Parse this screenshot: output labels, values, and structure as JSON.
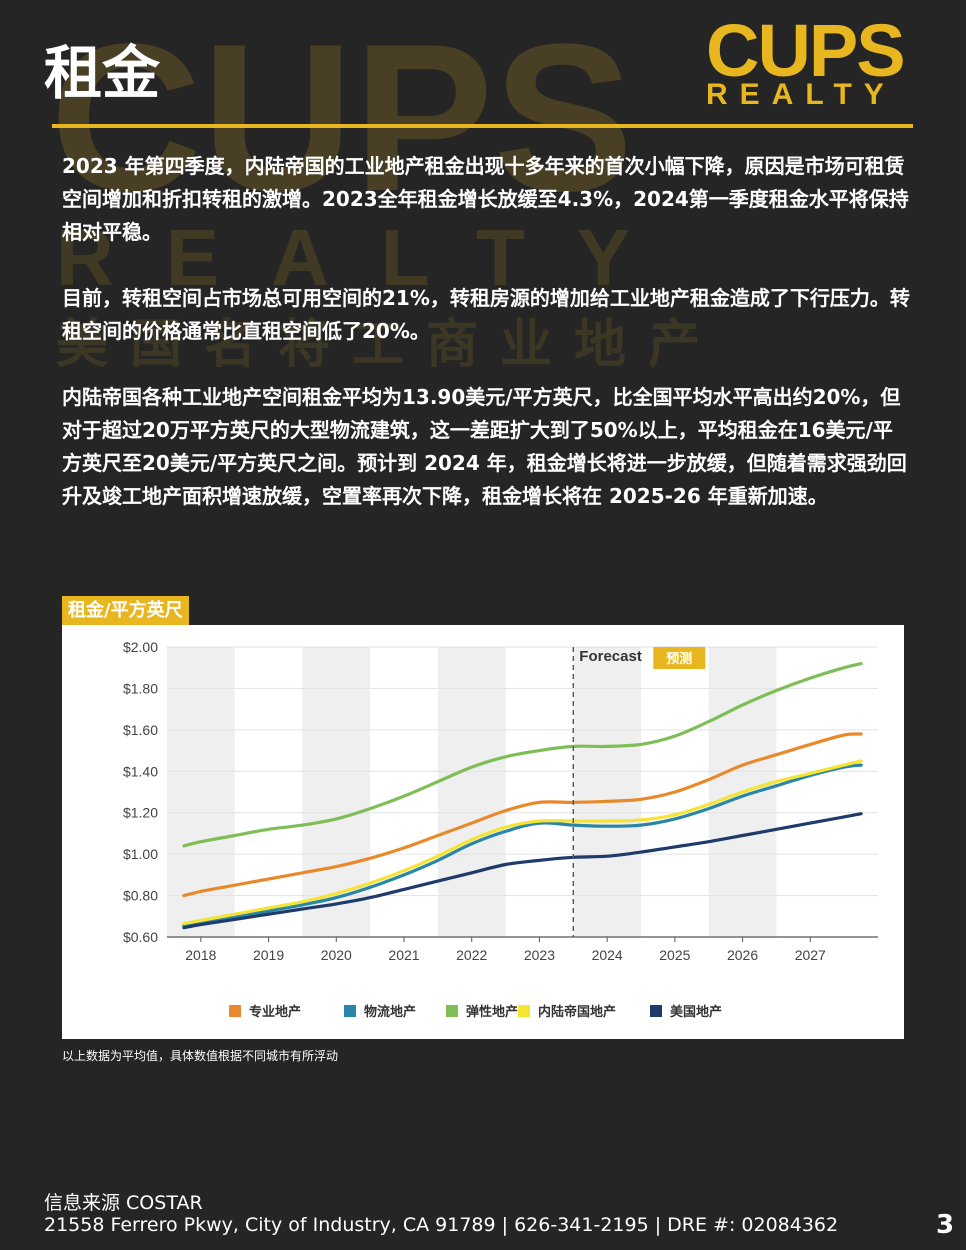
{
  "header": {
    "title": "租金",
    "logo_main": "CUPS",
    "logo_sub": "REALTY",
    "watermark_line1": "CUPS",
    "watermark_line2": "REALTY",
    "watermark_line3": "美国名将工商业地产"
  },
  "paragraphs": [
    "2023 年第四季度，内陆帝国的工业地产租金出现十多年来的首次小幅下降，原因是市场可租赁空间增加和折扣转租的激增。2023全年租金增长放缓至4.3%，2024第一季度租金水平将保持相对平稳。",
    "目前，转租空间占市场总可用空间的21%，转租房源的增加给工业地产租金造成了下行压力。转租空间的价格通常比直租空间低了20%。",
    "内陆帝国各种工业地产空间租金平均为13.90美元/平方英尺，比全国平均水平高出约20%，但对于超过20万平方英尺的大型物流建筑，这一差距扩大到了50%以上，平均租金在16美元/平方英尺至20美元/平方英尺之间。预计到 2024 年，租金增长将进一步放缓，但随着需求强劲回升及竣工地产面积增速放缓，空置率再次下降，租金增长将在 2025-26 年重新加速。"
  ],
  "chart_tag": "租金/平方英尺",
  "note": "以上数据为平均值，具体数值根据不同城市有所浮动",
  "footer": {
    "source": "信息来源 COSTAR",
    "address": "21558 Ferrero Pkwy, City of Industry, CA 91789 | 626-341-2195 | DRE #: 02084362",
    "page_number": "3"
  },
  "colors": {
    "background": "#252525",
    "accent_gold": "#e8b71f"
  },
  "chart_data": {
    "type": "line",
    "title": "",
    "xlabel": "",
    "ylabel": "",
    "x": [
      2017.75,
      2018,
      2018.5,
      2019,
      2019.5,
      2020,
      2020.5,
      2021,
      2021.5,
      2022,
      2022.5,
      2023,
      2023.5,
      2024,
      2024.5,
      2025,
      2025.5,
      2026,
      2026.5,
      2027,
      2027.5,
      2027.75
    ],
    "x_ticks": [
      2018,
      2019,
      2020,
      2021,
      2022,
      2023,
      2024,
      2025,
      2026,
      2027
    ],
    "x_tick_labels": [
      "2018",
      "2019",
      "2020",
      "2021",
      "2022",
      "2023",
      "2024",
      "2025",
      "2026",
      "2027"
    ],
    "xlim": [
      2017.5,
      2028.0
    ],
    "ylim": [
      0.6,
      2.0
    ],
    "y_ticks": [
      0.6,
      0.8,
      1.0,
      1.2,
      1.4,
      1.6,
      1.8,
      2.0
    ],
    "y_tick_labels": [
      "$0.60",
      "$0.80",
      "$1.00",
      "$1.20",
      "$1.40",
      "$1.60",
      "$1.80",
      "$2.00"
    ],
    "forecast_start": 2023.5,
    "forecast_label": "Forecast",
    "forecast_badge": "预测",
    "shaded_years": [
      2018,
      2020,
      2022,
      2024,
      2026
    ],
    "legend_position": "bottom",
    "series": [
      {
        "name": "专业地产",
        "color": "#e8892b",
        "values": [
          0.8,
          0.82,
          0.85,
          0.88,
          0.91,
          0.94,
          0.98,
          1.03,
          1.09,
          1.15,
          1.21,
          1.25,
          1.25,
          1.255,
          1.265,
          1.3,
          1.36,
          1.43,
          1.48,
          1.53,
          1.575,
          1.58
        ]
      },
      {
        "name": "物流地产",
        "color": "#2a86a8",
        "values": [
          0.655,
          0.665,
          0.695,
          0.725,
          0.755,
          0.79,
          0.84,
          0.9,
          0.97,
          1.05,
          1.11,
          1.15,
          1.14,
          1.135,
          1.14,
          1.17,
          1.22,
          1.28,
          1.33,
          1.38,
          1.42,
          1.43
        ]
      },
      {
        "name": "弹性地产",
        "color": "#7fbd57",
        "values": [
          1.04,
          1.06,
          1.09,
          1.12,
          1.14,
          1.17,
          1.22,
          1.28,
          1.35,
          1.42,
          1.47,
          1.5,
          1.52,
          1.52,
          1.53,
          1.57,
          1.64,
          1.72,
          1.79,
          1.85,
          1.9,
          1.92
        ]
      },
      {
        "name": "内陆帝国地产",
        "color": "#f5e433",
        "values": [
          0.665,
          0.68,
          0.71,
          0.74,
          0.77,
          0.81,
          0.86,
          0.92,
          0.99,
          1.07,
          1.13,
          1.16,
          1.16,
          1.16,
          1.165,
          1.19,
          1.24,
          1.3,
          1.35,
          1.39,
          1.43,
          1.45
        ]
      },
      {
        "name": "美国地产",
        "color": "#1f3b6b",
        "values": [
          0.645,
          0.66,
          0.685,
          0.71,
          0.735,
          0.76,
          0.79,
          0.83,
          0.87,
          0.91,
          0.95,
          0.97,
          0.985,
          0.99,
          1.01,
          1.035,
          1.06,
          1.09,
          1.12,
          1.15,
          1.18,
          1.195
        ]
      }
    ]
  }
}
